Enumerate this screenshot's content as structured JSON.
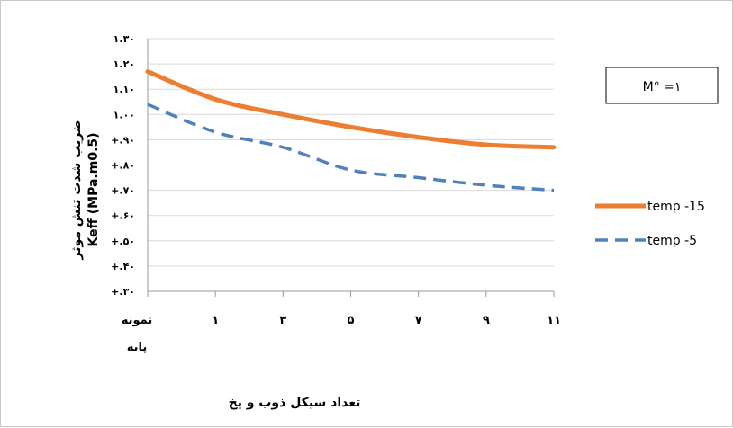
{
  "chart_data": {
    "type": "line",
    "categories": [
      [
        "نمونه",
        "پایه"
      ],
      [
        "۱"
      ],
      [
        "۳"
      ],
      [
        "۵"
      ],
      [
        "۷"
      ],
      [
        "۹"
      ],
      [
        "۱۱"
      ]
    ],
    "ylim": [
      0.3,
      1.3
    ],
    "yticks": [
      {
        "value": 0.3,
        "label": "+.۳۰"
      },
      {
        "value": 0.4,
        "label": "+.۴۰"
      },
      {
        "value": 0.5,
        "label": "+.۵۰"
      },
      {
        "value": 0.6,
        "label": "+.۶۰"
      },
      {
        "value": 0.7,
        "label": "+.۷۰"
      },
      {
        "value": 0.8,
        "label": "+.۸۰"
      },
      {
        "value": 0.9,
        "label": "+.۹۰"
      },
      {
        "value": 1.0,
        "label": "۱.۰۰"
      },
      {
        "value": 1.1,
        "label": "۱.۱۰"
      },
      {
        "value": 1.2,
        "label": "۱.۲۰"
      },
      {
        "value": 1.3,
        "label": "۱.۳۰"
      }
    ],
    "ylabel_line1": "ضریب شدت تنش موثر",
    "ylabel_line2": "Keff (MPa.m0.5)",
    "xlabel": "تعداد سیکل ذوب و یخ",
    "annotation": "M° =۱",
    "grid": true,
    "legend_position": "right",
    "series": [
      {
        "name": "temp -15",
        "values": [
          1.17,
          1.06,
          1.0,
          0.95,
          0.91,
          0.88,
          0.87
        ],
        "color": "#ed7d31",
        "style": "solid"
      },
      {
        "name": "temp -5",
        "values": [
          1.04,
          0.93,
          0.87,
          0.78,
          0.75,
          0.72,
          0.7
        ],
        "color": "#4f81bd",
        "style": "dashed"
      }
    ]
  }
}
